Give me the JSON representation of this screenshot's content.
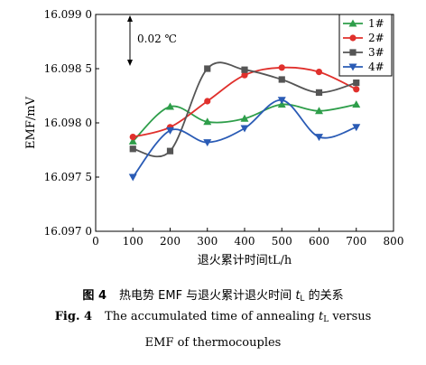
{
  "chart_data": {
    "type": "line",
    "title": "",
    "xlabel": "退火累计时间tL/h",
    "ylabel": "EMF/mV",
    "xlim": [
      0,
      800
    ],
    "ylim": [
      16.097,
      16.099
    ],
    "x_ticks": [
      "0",
      "100",
      "200",
      "300",
      "400",
      "500",
      "600",
      "700",
      "800"
    ],
    "y_ticks": [
      "16.097 0",
      "16.097 5",
      "16.098 0",
      "16.098 5",
      "16.099 0"
    ],
    "x": [
      100,
      200,
      300,
      400,
      500,
      600,
      700
    ],
    "series": [
      {
        "name": "1#",
        "color": "#2e9e4a",
        "marker": "triangle-up",
        "values": [
          16.09783,
          16.09815,
          16.09801,
          16.09804,
          16.09817,
          16.09811,
          16.09817
        ]
      },
      {
        "name": "2#",
        "color": "#e0302c",
        "marker": "circle",
        "values": [
          16.09787,
          16.09796,
          16.0982,
          16.09844,
          16.09851,
          16.09847,
          16.09831
        ]
      },
      {
        "name": "3#",
        "color": "#555555",
        "marker": "square",
        "values": [
          16.09776,
          16.09774,
          16.0985,
          16.09849,
          16.0984,
          16.09828,
          16.09837
        ]
      },
      {
        "name": "4#",
        "color": "#2a5bb5",
        "marker": "triangle-down",
        "values": [
          16.0975,
          16.09793,
          16.09782,
          16.09795,
          16.09821,
          16.09787,
          16.09796
        ]
      }
    ],
    "annotation": "0.02 ℃",
    "legend_position": "top-right",
    "grid": false
  },
  "caption": {
    "cn_label": "图 4",
    "cn_text_before": "热电势 EMF 与退火累计退火时间 ",
    "cn_var": "t",
    "cn_sub": "L",
    "cn_text_after": " 的关系",
    "en_label": "Fig. 4",
    "en_line1_before": "The accumulated time of annealing ",
    "en_var": "t",
    "en_sub": "L",
    "en_line1_after": " versus",
    "en_line2": "EMF of thermocouples"
  }
}
